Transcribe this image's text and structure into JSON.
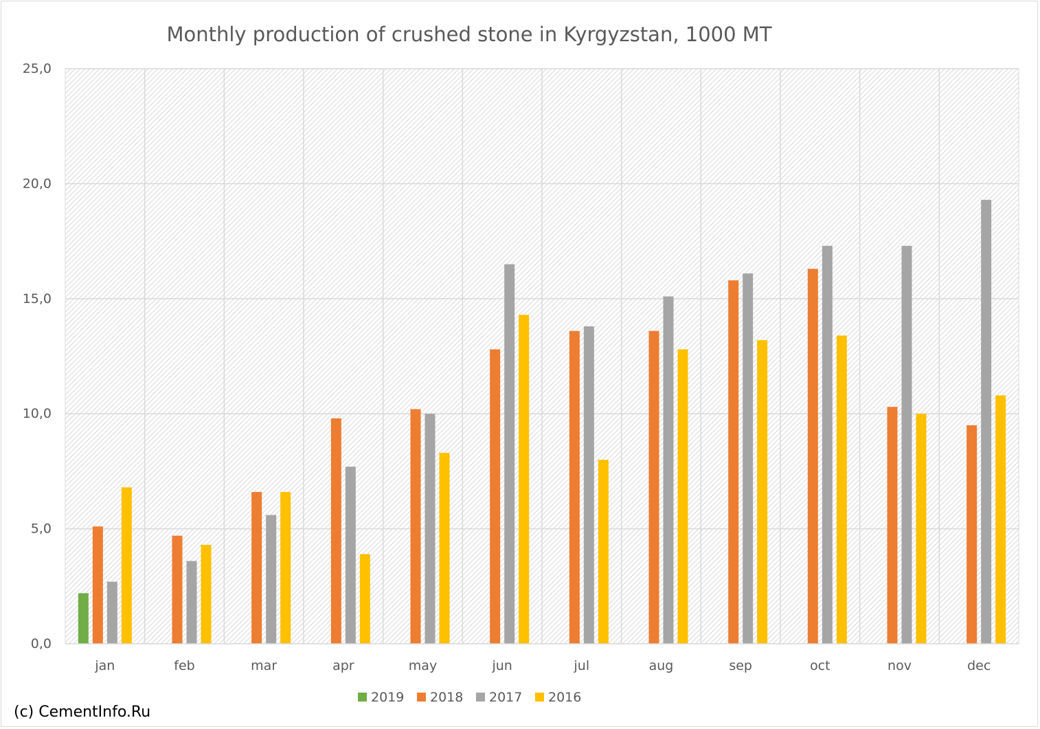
{
  "chart_data": {
    "type": "bar",
    "title": "Monthly production of crushed stone in Kyrgyzstan, 1000 MT",
    "xlabel": "",
    "ylabel": "",
    "ylim": [
      0,
      25
    ],
    "yticks": [
      "0,0",
      "5,0",
      "10,0",
      "15,0",
      "20,0",
      "25,0"
    ],
    "categories": [
      "jan",
      "feb",
      "mar",
      "apr",
      "may",
      "jun",
      "jul",
      "aug",
      "sep",
      "oct",
      "nov",
      "dec"
    ],
    "series": [
      {
        "name": "2019",
        "color": "#70ad47",
        "values": [
          2.2,
          null,
          null,
          null,
          null,
          null,
          null,
          null,
          null,
          null,
          null,
          null
        ]
      },
      {
        "name": "2018",
        "color": "#ed7d31",
        "values": [
          5.1,
          4.7,
          6.6,
          9.8,
          10.2,
          12.8,
          13.6,
          13.6,
          15.8,
          16.3,
          10.3,
          9.5
        ]
      },
      {
        "name": "2017",
        "color": "#a5a5a5",
        "values": [
          2.7,
          3.6,
          5.6,
          7.7,
          10.0,
          16.5,
          13.8,
          15.1,
          16.1,
          17.3,
          17.3,
          19.3
        ]
      },
      {
        "name": "2016",
        "color": "#ffc000",
        "values": [
          6.8,
          4.3,
          6.6,
          3.9,
          8.3,
          14.3,
          8.0,
          12.8,
          13.2,
          13.4,
          10.0,
          10.8
        ]
      }
    ],
    "legend_position": "bottom",
    "grid": true,
    "credit": "(c) CementInfo.Ru"
  }
}
